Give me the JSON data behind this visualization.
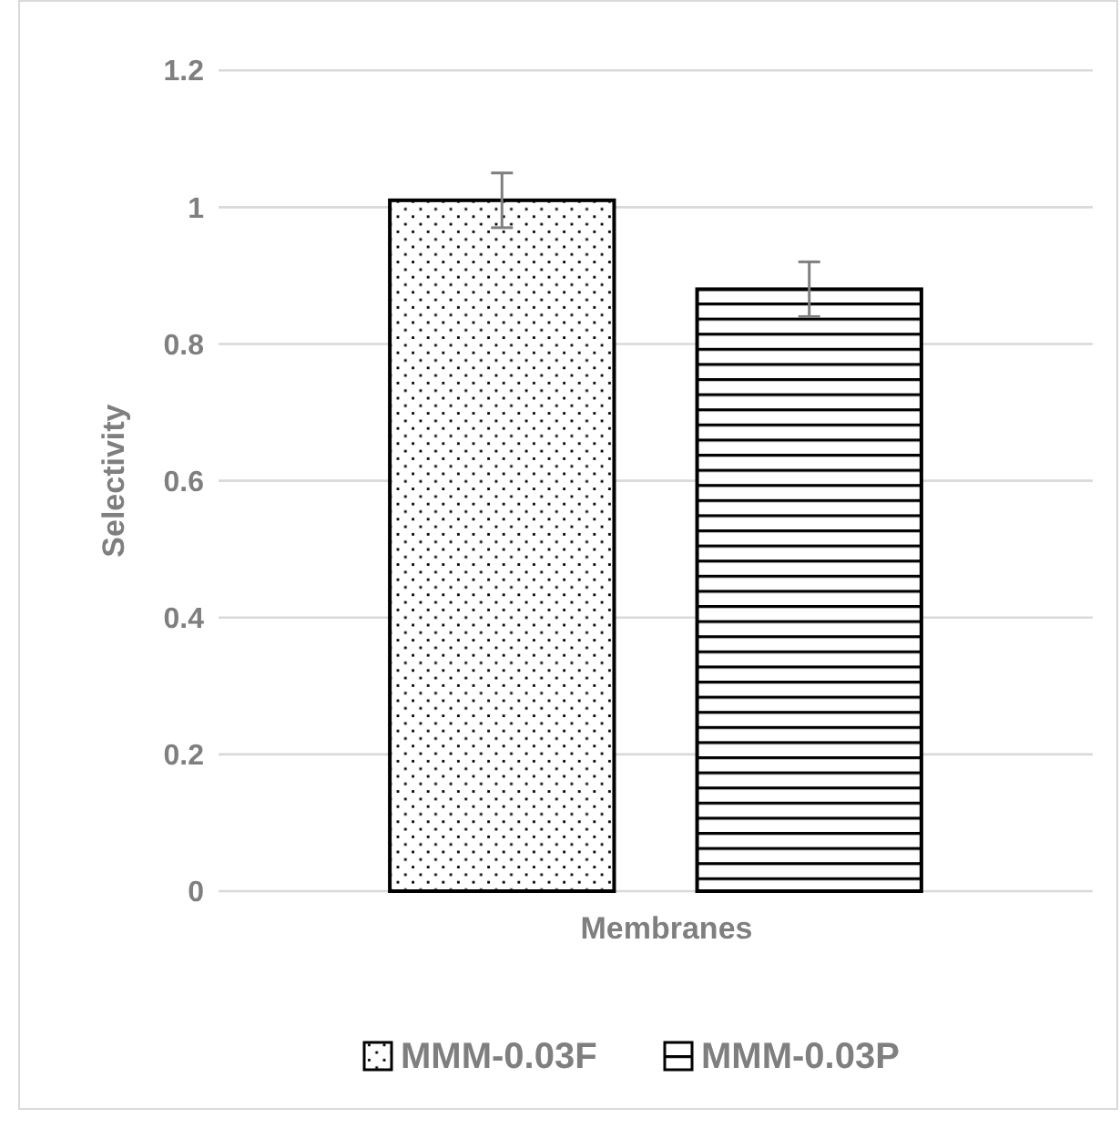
{
  "chart_data": {
    "type": "bar",
    "xlabel": "Membranes",
    "ylabel": "Selectivity",
    "categories": [
      null
    ],
    "series": [
      {
        "name": "MMM-0.03F",
        "color": "#000000",
        "values": [
          1.01
        ],
        "errors": [
          0.04
        ]
      },
      {
        "name": "MMM-0.03P",
        "color": "#000000",
        "values": [
          0.88
        ],
        "errors": [
          0.04
        ]
      }
    ],
    "ylim": [
      0,
      1.2
    ],
    "yticks": [
      0,
      {
        "value": 0.2,
        "label": "0.2"
      },
      {
        "value": 0.4,
        "label": "0.4"
      },
      {
        "value": 0.6,
        "label": "0.6"
      },
      {
        "value": 0.8,
        "label": "0.8"
      },
      1,
      {
        "value": 1.2,
        "label": "1.2"
      }
    ],
    "grid": "y",
    "legend": "bottom"
  }
}
